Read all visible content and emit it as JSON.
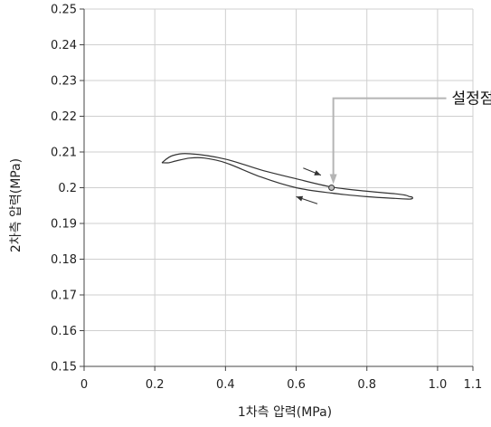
{
  "chart_data": {
    "type": "line",
    "xlabel": "1차측 압력(MPa)",
    "ylabel": "2차측 압력(MPa)",
    "xlim": [
      0,
      1.1
    ],
    "ylim": [
      0.15,
      0.25
    ],
    "x_ticks": [
      0,
      0.2,
      0.4,
      0.6,
      0.8,
      1.0,
      1.1
    ],
    "x_tick_labels": [
      "0",
      "0.2",
      "0.4",
      "0.6",
      "0.8",
      "1.0",
      "1.1"
    ],
    "y_ticks": [
      0.15,
      0.16,
      0.17,
      0.18,
      0.19,
      0.2,
      0.21,
      0.22,
      0.23,
      0.24,
      0.25
    ],
    "y_tick_labels": [
      "0.15",
      "0.16",
      "0.17",
      "0.18",
      "0.19",
      "0.2",
      "0.21",
      "0.22",
      "0.23",
      "0.24",
      "0.25"
    ],
    "grid": true,
    "line_color": "#333333",
    "series": [
      {
        "x": [
          0.22,
          0.25,
          0.3,
          0.4,
          0.5,
          0.6,
          0.7,
          0.8,
          0.88,
          0.91,
          0.92
        ],
        "y": [
          0.207,
          0.209,
          0.2095,
          0.208,
          0.205,
          0.2025,
          0.2002,
          0.199,
          0.1983,
          0.1979,
          0.1975
        ]
      },
      {
        "x": [
          0.92,
          0.88,
          0.8,
          0.7,
          0.6,
          0.5,
          0.4,
          0.34,
          0.3,
          0.26,
          0.24,
          0.22
        ],
        "y": [
          0.1968,
          0.197,
          0.1975,
          0.1985,
          0.2,
          0.203,
          0.207,
          0.2083,
          0.2083,
          0.2075,
          0.207,
          0.207
        ]
      }
    ],
    "setpoint": {
      "x": 0.7,
      "y": 0.2
    },
    "arrows": [
      {
        "from": [
          0.62,
          0.2055
        ],
        "to": [
          0.67,
          0.2035
        ]
      },
      {
        "from": [
          0.66,
          0.1955
        ],
        "to": [
          0.6,
          0.1975
        ]
      }
    ],
    "annotations": [
      {
        "text": "설정점",
        "x": 0.7,
        "y": 0.2,
        "text_x": 1.04,
        "text_y": 0.2235
      }
    ]
  }
}
